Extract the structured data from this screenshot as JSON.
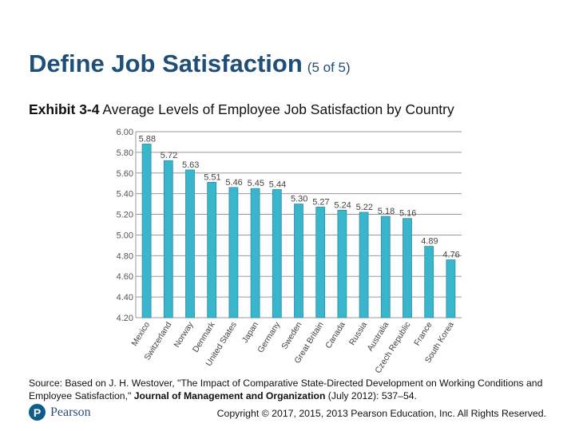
{
  "slide": {
    "title": "Define Job Satisfaction",
    "title_suffix": "(5 of 5)",
    "exhibit_label": "Exhibit 3-4",
    "exhibit_text": "Average Levels of Employee Job Satisfaction by Country"
  },
  "chart_data": {
    "type": "bar",
    "title": "",
    "xlabel": "",
    "ylabel": "",
    "ylim": [
      4.2,
      6.0
    ],
    "y_ticks": [
      "4.20",
      "4.40",
      "4.60",
      "4.80",
      "5.00",
      "5.20",
      "5.40",
      "5.60",
      "5.80",
      "6.00"
    ],
    "grid": true,
    "categories": [
      "Mexico",
      "Switzerland",
      "Norway",
      "Denmark",
      "United States",
      "Japan",
      "Germany",
      "Sweden",
      "Great Britain",
      "Canada",
      "Russia",
      "Australia",
      "Czech Republic",
      "France",
      "South Korea"
    ],
    "values": [
      5.88,
      5.72,
      5.63,
      5.51,
      5.46,
      5.45,
      5.44,
      5.3,
      5.27,
      5.24,
      5.22,
      5.18,
      5.16,
      4.89,
      4.76
    ],
    "value_labels": [
      "5.88",
      "5.72",
      "5.63",
      "5.51",
      "5.46",
      "5.45",
      "5.44",
      "5.30",
      "5.27",
      "5.24",
      "5.22",
      "5.18",
      "5.16",
      "4.89",
      "4.76"
    ],
    "bar_color": "#3ab6cc"
  },
  "source": {
    "prefix": "Source: Based on J. H. Westover, \"The Impact of Comparative State-Directed Development on Working Conditions and Employee Satisfaction,\"",
    "journal": "Journal of Management and Organization",
    "suffix": "(July 2012): 537–54."
  },
  "footer": {
    "logo_letter": "P",
    "logo_text": "Pearson",
    "copyright": "Copyright © 2017, 2015, 2013 Pearson Education, Inc. All Rights Reserved."
  }
}
